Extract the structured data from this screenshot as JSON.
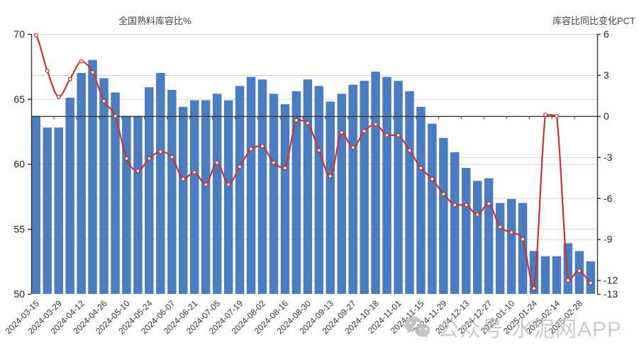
{
  "chart_data": {
    "type": "bar",
    "combo": "bar+line dual axis",
    "title_left": "全国熟料库容比%",
    "title_right": "库容比同比变化PCT",
    "categories": [
      "2024-03-15",
      "2024-03-22",
      "2024-03-29",
      "2024-04-05",
      "2024-04-12",
      "2024-04-19",
      "2024-04-26",
      "2024-05-03",
      "2024-05-10",
      "2024-05-17",
      "2024-05-24",
      "2024-05-31",
      "2024-06-07",
      "2024-06-14",
      "2024-06-21",
      "2024-06-28",
      "2024-07-05",
      "2024-07-12",
      "2024-07-19",
      "2024-07-26",
      "2024-08-02",
      "2024-08-09",
      "2024-08-16",
      "2024-08-23",
      "2024-08-30",
      "2024-09-06",
      "2024-09-13",
      "2024-09-20",
      "2024-09-27",
      "2024-10-11",
      "2024-10-18",
      "2024-10-25",
      "2024-11-01",
      "2024-11-08",
      "2024-11-15",
      "2024-11-22",
      "2024-11-29",
      "2024-12-06",
      "2024-12-13",
      "2024-12-20",
      "2024-12-27",
      "2025-01-03",
      "2025-01-10",
      "2025-01-17",
      "2025-01-24",
      "2025-02-07",
      "2025-02-14",
      "2025-02-21",
      "2025-02-28",
      "2025-03-07"
    ],
    "x_tick_labels": [
      "2024-03-15",
      "2024-03-29",
      "2024-04-12",
      "2024-04-26",
      "2024-05-10",
      "2024-05-24",
      "2024-06-07",
      "2024-06-21",
      "2024-07-05",
      "2024-07-19",
      "2024-08-02",
      "2024-08-16",
      "2024-08-30",
      "2024-09-13",
      "2024-09-27",
      "2024-10-18",
      "2024-11-01",
      "2024-11-15",
      "2024-11-29",
      "2024-12-13",
      "2024-12-27",
      "2025-01-10",
      "2025-01-24",
      "2025-02-14",
      "2025-02-28"
    ],
    "series": [
      {
        "name": "全国熟料库容比%",
        "type": "bar",
        "axis": "left",
        "color": "#4c7cbf",
        "values": [
          63.7,
          62.8,
          62.8,
          65.1,
          67.0,
          68.0,
          66.6,
          65.5,
          63.7,
          63.7,
          65.9,
          67.0,
          65.7,
          64.4,
          64.9,
          64.9,
          65.4,
          64.9,
          66.0,
          66.7,
          66.5,
          65.4,
          64.6,
          65.6,
          66.5,
          66.0,
          64.8,
          65.4,
          66.1,
          66.4,
          67.1,
          66.7,
          66.4,
          65.6,
          64.4,
          63.1,
          62.0,
          60.9,
          59.7,
          58.7,
          58.9,
          57.0,
          57.3,
          57.0,
          53.3,
          52.9,
          52.9,
          53.9,
          53.3,
          52.5
        ]
      },
      {
        "name": "库容比同比变化PCT",
        "type": "line",
        "axis": "right",
        "color": "#c13a32",
        "values": [
          5.9,
          3.3,
          1.4,
          2.7,
          4.0,
          3.2,
          1.1,
          0.0,
          -3.1,
          -4.0,
          -3.1,
          -2.6,
          -3.0,
          -4.6,
          -4.1,
          -5.0,
          -3.4,
          -5.0,
          -3.7,
          -2.4,
          -2.2,
          -3.4,
          -3.8,
          -0.3,
          -0.5,
          -2.5,
          -4.4,
          -1.2,
          -2.3,
          -1.1,
          -0.6,
          -1.4,
          -1.4,
          -2.5,
          -3.8,
          -4.6,
          -5.7,
          -6.5,
          -6.5,
          -7.2,
          -6.4,
          -8.1,
          -8.5,
          -9.0,
          -12.6,
          0.1,
          0.0,
          -12.0,
          -11.3,
          -12.2
        ]
      }
    ],
    "left_axis": {
      "min": 50,
      "max": 70,
      "tick_labels": [
        "70",
        "65",
        "60",
        "55",
        "50"
      ],
      "ticks": [
        70,
        65,
        60,
        55,
        50
      ]
    },
    "right_axis": {
      "min": -13,
      "max": 6,
      "tick_labels": [
        "6",
        "3",
        "0",
        "-3",
        "-6",
        "-9",
        "-12",
        "-13"
      ],
      "ticks": [
        6,
        3,
        0,
        -3,
        -6,
        -9,
        -12,
        -13
      ]
    },
    "grid": true,
    "legend_position": "none",
    "colors": {
      "bar": "#4c7cbf",
      "line": "#c13a32",
      "marker_fill": "#ffffff",
      "grid": "#d6d6d6",
      "zero_line": "#3a3a3a",
      "axis": "#333333",
      "tick_text": "#1f1f1f",
      "title_text": "#454545",
      "watermark": "#c3c3c3"
    }
  },
  "watermark": {
    "text": "公众号·水泥网APP",
    "icon": "wechat-icon"
  }
}
